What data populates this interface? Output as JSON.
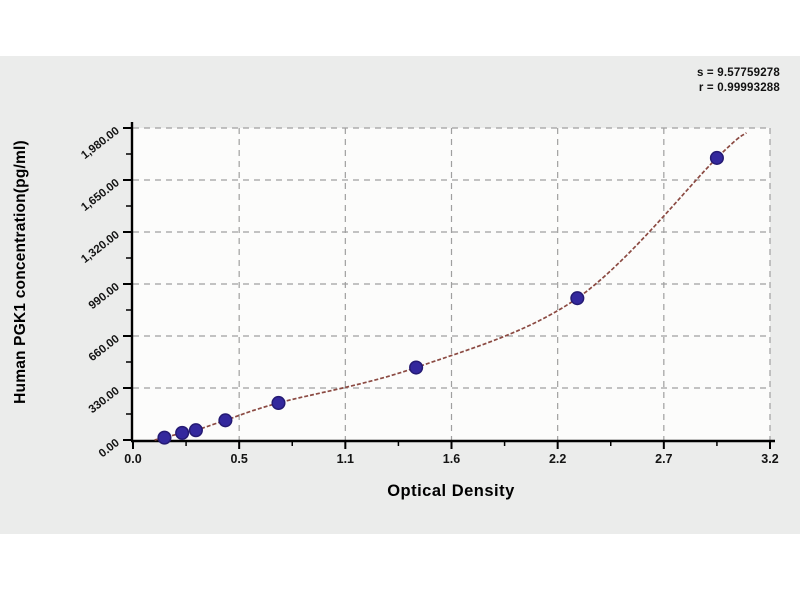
{
  "chart": {
    "annotation": {
      "s_label": "s = 9.57759278",
      "r_label": "r = 0.99993288"
    }
  },
  "chart_data": {
    "type": "scatter",
    "title": "",
    "xlabel": "Optical Density",
    "ylabel": "Human PGK1 concentration(pg/ml)",
    "xlim": [
      0,
      3.24
    ],
    "ylim": [
      0,
      1980
    ],
    "x_tick_labels": [
      "0.0",
      "0.5",
      "1.1",
      "1.6",
      "2.2",
      "2.7",
      "3.2"
    ],
    "y_tick_labels": [
      "0.00",
      "330.00",
      "660.00",
      "990.00",
      "1,320.00",
      "1,650.00",
      "1,980.00"
    ],
    "grid": "dashed",
    "legend": "none",
    "points": [
      {
        "od": 0.16,
        "conc": 15
      },
      {
        "od": 0.25,
        "conc": 45
      },
      {
        "od": 0.32,
        "conc": 62
      },
      {
        "od": 0.47,
        "conc": 125
      },
      {
        "od": 0.74,
        "conc": 235
      },
      {
        "od": 1.44,
        "conc": 460
      },
      {
        "od": 2.26,
        "conc": 900
      },
      {
        "od": 2.97,
        "conc": 1790
      }
    ],
    "fit": {
      "s": "9.57759278",
      "r": "0.99993288"
    },
    "curve_extent": {
      "start": {
        "od": 0.11,
        "conc": 0
      },
      "end": {
        "od": 3.12,
        "conc": 1950
      }
    },
    "colors": {
      "point": "#33289d",
      "point_edge": "#241a73",
      "curve": "#8b4a42",
      "grid": "#9f9f9f",
      "panel": "#ebeceb",
      "plot_bg": "#fcfcfb",
      "axis": "#000000"
    }
  }
}
